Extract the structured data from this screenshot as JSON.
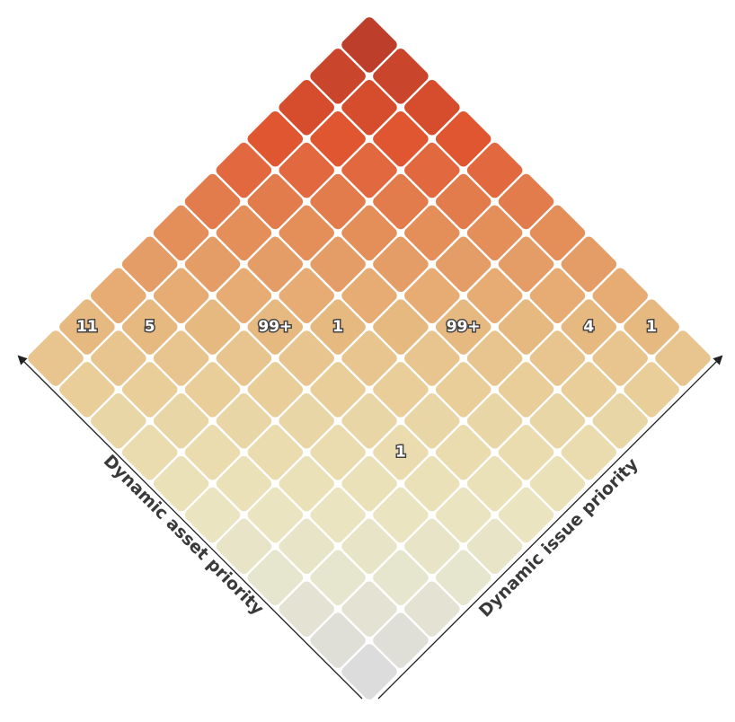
{
  "chart_data": {
    "type": "heatmap",
    "layout": "diamond",
    "grid_size": 11,
    "xlabel": "Dynamic asset priority",
    "ylabel": "Dynamic issue priority",
    "grid": false,
    "legend": "none",
    "color_scale": [
      "#dcdcdc",
      "#e6e5cf",
      "#ebe3bc",
      "#e9d3a0",
      "#e6b47b",
      "#e48a56",
      "#e0532f",
      "#bd3f2b"
    ],
    "cells": [
      {
        "asset": 1,
        "issue": 10,
        "value": "1"
      },
      {
        "asset": 2,
        "issue": 9,
        "value": "4"
      },
      {
        "asset": 4,
        "issue": 7,
        "value": "99+"
      },
      {
        "asset": 6,
        "issue": 5,
        "value": "1"
      },
      {
        "asset": 7,
        "issue": 4,
        "value": "99+"
      },
      {
        "asset": 10,
        "issue": 1,
        "value": "11"
      },
      {
        "asset": 9,
        "issue": 2,
        "value": "5"
      },
      {
        "asset": 3,
        "issue": 4,
        "value": "1"
      }
    ]
  }
}
